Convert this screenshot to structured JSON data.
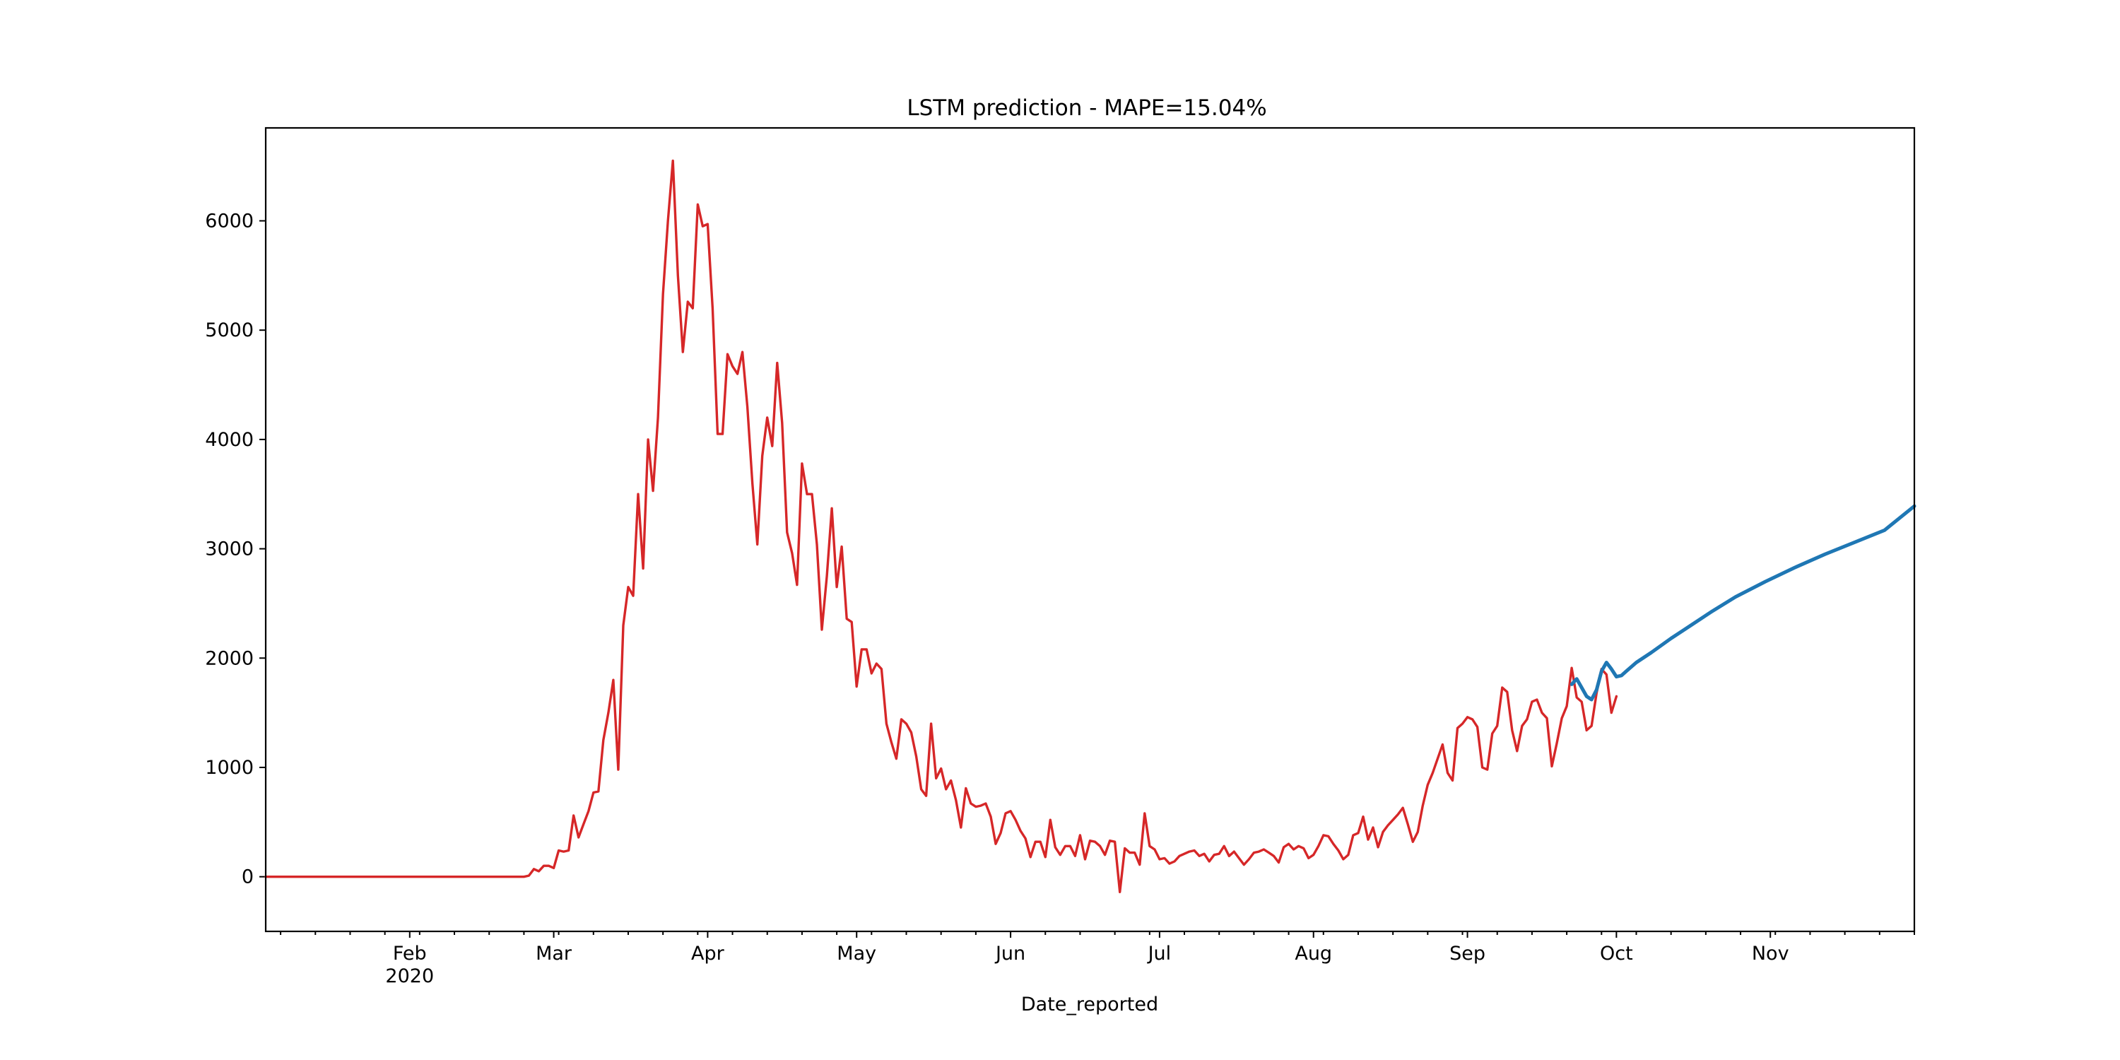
{
  "chart_data": {
    "type": "line",
    "title": "LSTM prediction - MAPE=15.04%",
    "xlabel": "Date_reported",
    "ylabel": "",
    "xlim": [
      "2020-01-03",
      "2020-11-30"
    ],
    "ylim": [
      -500,
      6850
    ],
    "yticks": [
      0,
      1000,
      2000,
      3000,
      4000,
      5000,
      6000
    ],
    "xticks_major": [
      {
        "date": "2020-02-01",
        "label": "Feb",
        "sublabel": "2020"
      },
      {
        "date": "2020-03-01",
        "label": "Mar",
        "sublabel": ""
      },
      {
        "date": "2020-04-01",
        "label": "Apr",
        "sublabel": ""
      },
      {
        "date": "2020-05-01",
        "label": "May",
        "sublabel": ""
      },
      {
        "date": "2020-06-01",
        "label": "Jun",
        "sublabel": ""
      },
      {
        "date": "2020-07-01",
        "label": "Jul",
        "sublabel": ""
      },
      {
        "date": "2020-08-01",
        "label": "Aug",
        "sublabel": ""
      },
      {
        "date": "2020-09-01",
        "label": "Sep",
        "sublabel": ""
      },
      {
        "date": "2020-10-01",
        "label": "Oct",
        "sublabel": ""
      },
      {
        "date": "2020-11-01",
        "label": "Nov",
        "sublabel": ""
      }
    ],
    "grid": false,
    "series": [
      {
        "color": "#d62728",
        "points": [
          [
            "2020-01-03",
            0
          ],
          [
            "2020-01-31",
            0
          ],
          [
            "2020-02-24",
            0
          ],
          [
            "2020-02-25",
            10
          ],
          [
            "2020-02-26",
            70
          ],
          [
            "2020-02-27",
            50
          ],
          [
            "2020-02-28",
            100
          ],
          [
            "2020-02-29",
            100
          ],
          [
            "2020-03-01",
            80
          ],
          [
            "2020-03-02",
            240
          ],
          [
            "2020-03-03",
            230
          ],
          [
            "2020-03-04",
            240
          ],
          [
            "2020-03-05",
            560
          ],
          [
            "2020-03-06",
            360
          ],
          [
            "2020-03-07",
            480
          ],
          [
            "2020-03-08",
            600
          ],
          [
            "2020-03-09",
            770
          ],
          [
            "2020-03-10",
            780
          ],
          [
            "2020-03-11",
            1250
          ],
          [
            "2020-03-12",
            1500
          ],
          [
            "2020-03-13",
            1800
          ],
          [
            "2020-03-14",
            980
          ],
          [
            "2020-03-15",
            2300
          ],
          [
            "2020-03-16",
            2650
          ],
          [
            "2020-03-17",
            2570
          ],
          [
            "2020-03-18",
            3500
          ],
          [
            "2020-03-19",
            2820
          ],
          [
            "2020-03-20",
            4000
          ],
          [
            "2020-03-21",
            3530
          ],
          [
            "2020-03-22",
            4200
          ],
          [
            "2020-03-23",
            5330
          ],
          [
            "2020-03-24",
            6000
          ],
          [
            "2020-03-25",
            6550
          ],
          [
            "2020-03-26",
            5500
          ],
          [
            "2020-03-27",
            4800
          ],
          [
            "2020-03-28",
            5260
          ],
          [
            "2020-03-29",
            5200
          ],
          [
            "2020-03-30",
            6150
          ],
          [
            "2020-03-31",
            5950
          ],
          [
            "2020-04-01",
            5970
          ],
          [
            "2020-04-02",
            5200
          ],
          [
            "2020-04-03",
            4050
          ],
          [
            "2020-04-04",
            4050
          ],
          [
            "2020-04-05",
            4780
          ],
          [
            "2020-04-06",
            4670
          ],
          [
            "2020-04-07",
            4600
          ],
          [
            "2020-04-08",
            4800
          ],
          [
            "2020-04-09",
            4300
          ],
          [
            "2020-04-10",
            3600
          ],
          [
            "2020-04-11",
            3040
          ],
          [
            "2020-04-12",
            3850
          ],
          [
            "2020-04-13",
            4200
          ],
          [
            "2020-04-14",
            3940
          ],
          [
            "2020-04-15",
            4700
          ],
          [
            "2020-04-16",
            4150
          ],
          [
            "2020-04-17",
            3150
          ],
          [
            "2020-04-18",
            2960
          ],
          [
            "2020-04-19",
            2670
          ],
          [
            "2020-04-20",
            3780
          ],
          [
            "2020-04-21",
            3500
          ],
          [
            "2020-04-22",
            3500
          ],
          [
            "2020-04-23",
            3040
          ],
          [
            "2020-04-24",
            2260
          ],
          [
            "2020-04-25",
            2750
          ],
          [
            "2020-04-26",
            3370
          ],
          [
            "2020-04-27",
            2650
          ],
          [
            "2020-04-28",
            3020
          ],
          [
            "2020-04-29",
            2360
          ],
          [
            "2020-04-30",
            2330
          ],
          [
            "2020-05-01",
            1740
          ],
          [
            "2020-05-02",
            2080
          ],
          [
            "2020-05-03",
            2080
          ],
          [
            "2020-05-04",
            1860
          ],
          [
            "2020-05-05",
            1950
          ],
          [
            "2020-05-06",
            1900
          ],
          [
            "2020-05-07",
            1400
          ],
          [
            "2020-05-08",
            1230
          ],
          [
            "2020-05-09",
            1080
          ],
          [
            "2020-05-10",
            1440
          ],
          [
            "2020-05-11",
            1400
          ],
          [
            "2020-05-12",
            1320
          ],
          [
            "2020-05-13",
            1100
          ],
          [
            "2020-05-14",
            800
          ],
          [
            "2020-05-15",
            740
          ],
          [
            "2020-05-16",
            1400
          ],
          [
            "2020-05-17",
            900
          ],
          [
            "2020-05-18",
            990
          ],
          [
            "2020-05-19",
            800
          ],
          [
            "2020-05-20",
            880
          ],
          [
            "2020-05-21",
            700
          ],
          [
            "2020-05-22",
            450
          ],
          [
            "2020-05-23",
            810
          ],
          [
            "2020-05-24",
            670
          ],
          [
            "2020-05-25",
            640
          ],
          [
            "2020-05-26",
            650
          ],
          [
            "2020-05-27",
            670
          ],
          [
            "2020-05-28",
            550
          ],
          [
            "2020-05-29",
            300
          ],
          [
            "2020-05-30",
            400
          ],
          [
            "2020-05-31",
            580
          ],
          [
            "2020-06-01",
            600
          ],
          [
            "2020-06-02",
            520
          ],
          [
            "2020-06-03",
            420
          ],
          [
            "2020-06-04",
            350
          ],
          [
            "2020-06-05",
            180
          ],
          [
            "2020-06-06",
            320
          ],
          [
            "2020-06-07",
            320
          ],
          [
            "2020-06-08",
            180
          ],
          [
            "2020-06-09",
            520
          ],
          [
            "2020-06-10",
            270
          ],
          [
            "2020-06-11",
            200
          ],
          [
            "2020-06-12",
            280
          ],
          [
            "2020-06-13",
            280
          ],
          [
            "2020-06-14",
            190
          ],
          [
            "2020-06-15",
            380
          ],
          [
            "2020-06-16",
            160
          ],
          [
            "2020-06-17",
            330
          ],
          [
            "2020-06-18",
            320
          ],
          [
            "2020-06-19",
            280
          ],
          [
            "2020-06-20",
            200
          ],
          [
            "2020-06-21",
            330
          ],
          [
            "2020-06-22",
            320
          ],
          [
            "2020-06-23",
            -140
          ],
          [
            "2020-06-24",
            260
          ],
          [
            "2020-06-25",
            220
          ],
          [
            "2020-06-26",
            220
          ],
          [
            "2020-06-27",
            110
          ],
          [
            "2020-06-28",
            580
          ],
          [
            "2020-06-29",
            280
          ],
          [
            "2020-06-30",
            250
          ],
          [
            "2020-07-01",
            160
          ],
          [
            "2020-07-02",
            170
          ],
          [
            "2020-07-03",
            120
          ],
          [
            "2020-07-04",
            140
          ],
          [
            "2020-07-05",
            190
          ],
          [
            "2020-07-06",
            210
          ],
          [
            "2020-07-07",
            230
          ],
          [
            "2020-07-08",
            240
          ],
          [
            "2020-07-09",
            190
          ],
          [
            "2020-07-10",
            210
          ],
          [
            "2020-07-11",
            140
          ],
          [
            "2020-07-12",
            200
          ],
          [
            "2020-07-13",
            210
          ],
          [
            "2020-07-14",
            280
          ],
          [
            "2020-07-15",
            190
          ],
          [
            "2020-07-16",
            230
          ],
          [
            "2020-07-17",
            170
          ],
          [
            "2020-07-18",
            110
          ],
          [
            "2020-07-19",
            160
          ],
          [
            "2020-07-20",
            220
          ],
          [
            "2020-07-21",
            230
          ],
          [
            "2020-07-22",
            250
          ],
          [
            "2020-07-23",
            220
          ],
          [
            "2020-07-24",
            190
          ],
          [
            "2020-07-25",
            130
          ],
          [
            "2020-07-26",
            270
          ],
          [
            "2020-07-27",
            300
          ],
          [
            "2020-07-28",
            250
          ],
          [
            "2020-07-29",
            280
          ],
          [
            "2020-07-30",
            260
          ],
          [
            "2020-07-31",
            170
          ],
          [
            "2020-08-01",
            200
          ],
          [
            "2020-08-02",
            280
          ],
          [
            "2020-08-03",
            380
          ],
          [
            "2020-08-04",
            370
          ],
          [
            "2020-08-05",
            300
          ],
          [
            "2020-08-06",
            240
          ],
          [
            "2020-08-07",
            160
          ],
          [
            "2020-08-08",
            200
          ],
          [
            "2020-08-09",
            380
          ],
          [
            "2020-08-10",
            400
          ],
          [
            "2020-08-11",
            550
          ],
          [
            "2020-08-12",
            340
          ],
          [
            "2020-08-13",
            450
          ],
          [
            "2020-08-14",
            270
          ],
          [
            "2020-08-15",
            410
          ],
          [
            "2020-08-16",
            470
          ],
          [
            "2020-08-17",
            520
          ],
          [
            "2020-08-18",
            570
          ],
          [
            "2020-08-19",
            630
          ],
          [
            "2020-08-20",
            480
          ],
          [
            "2020-08-21",
            320
          ],
          [
            "2020-08-22",
            410
          ],
          [
            "2020-08-23",
            650
          ],
          [
            "2020-08-24",
            840
          ],
          [
            "2020-08-25",
            950
          ],
          [
            "2020-08-26",
            1080
          ],
          [
            "2020-08-27",
            1210
          ],
          [
            "2020-08-28",
            950
          ],
          [
            "2020-08-29",
            880
          ],
          [
            "2020-08-30",
            1360
          ],
          [
            "2020-08-31",
            1400
          ],
          [
            "2020-09-01",
            1460
          ],
          [
            "2020-09-02",
            1440
          ],
          [
            "2020-09-03",
            1370
          ],
          [
            "2020-09-04",
            1000
          ],
          [
            "2020-09-05",
            980
          ],
          [
            "2020-09-06",
            1310
          ],
          [
            "2020-09-07",
            1380
          ],
          [
            "2020-09-08",
            1730
          ],
          [
            "2020-09-09",
            1690
          ],
          [
            "2020-09-10",
            1340
          ],
          [
            "2020-09-11",
            1150
          ],
          [
            "2020-09-12",
            1380
          ],
          [
            "2020-09-13",
            1440
          ],
          [
            "2020-09-14",
            1600
          ],
          [
            "2020-09-15",
            1620
          ],
          [
            "2020-09-16",
            1500
          ],
          [
            "2020-09-17",
            1450
          ],
          [
            "2020-09-18",
            1010
          ],
          [
            "2020-09-19",
            1220
          ],
          [
            "2020-09-20",
            1450
          ],
          [
            "2020-09-21",
            1560
          ],
          [
            "2020-09-22",
            1910
          ],
          [
            "2020-09-23",
            1640
          ],
          [
            "2020-09-24",
            1600
          ],
          [
            "2020-09-25",
            1340
          ],
          [
            "2020-09-26",
            1380
          ],
          [
            "2020-09-27",
            1680
          ],
          [
            "2020-09-28",
            1900
          ],
          [
            "2020-09-29",
            1850
          ],
          [
            "2020-09-30",
            1500
          ],
          [
            "2020-10-01",
            1650
          ]
        ]
      },
      {
        "color": "#1f77b4",
        "points": [
          [
            "2020-09-22",
            1760
          ],
          [
            "2020-09-23",
            1810
          ],
          [
            "2020-09-24",
            1730
          ],
          [
            "2020-09-25",
            1650
          ],
          [
            "2020-09-26",
            1620
          ],
          [
            "2020-09-27",
            1710
          ],
          [
            "2020-09-28",
            1880
          ],
          [
            "2020-09-29",
            1960
          ],
          [
            "2020-09-30",
            1900
          ],
          [
            "2020-10-01",
            1830
          ],
          [
            "2020-10-02",
            1840
          ],
          [
            "2020-10-03",
            1880
          ],
          [
            "2020-10-05",
            1960
          ],
          [
            "2020-10-08",
            2050
          ],
          [
            "2020-10-12",
            2180
          ],
          [
            "2020-10-16",
            2300
          ],
          [
            "2020-10-20",
            2420
          ],
          [
            "2020-10-25",
            2560
          ],
          [
            "2020-10-31",
            2700
          ],
          [
            "2020-11-06",
            2830
          ],
          [
            "2020-11-12",
            2950
          ],
          [
            "2020-11-18",
            3060
          ],
          [
            "2020-11-24",
            3170
          ],
          [
            "2020-11-30",
            3390
          ]
        ]
      }
    ]
  }
}
